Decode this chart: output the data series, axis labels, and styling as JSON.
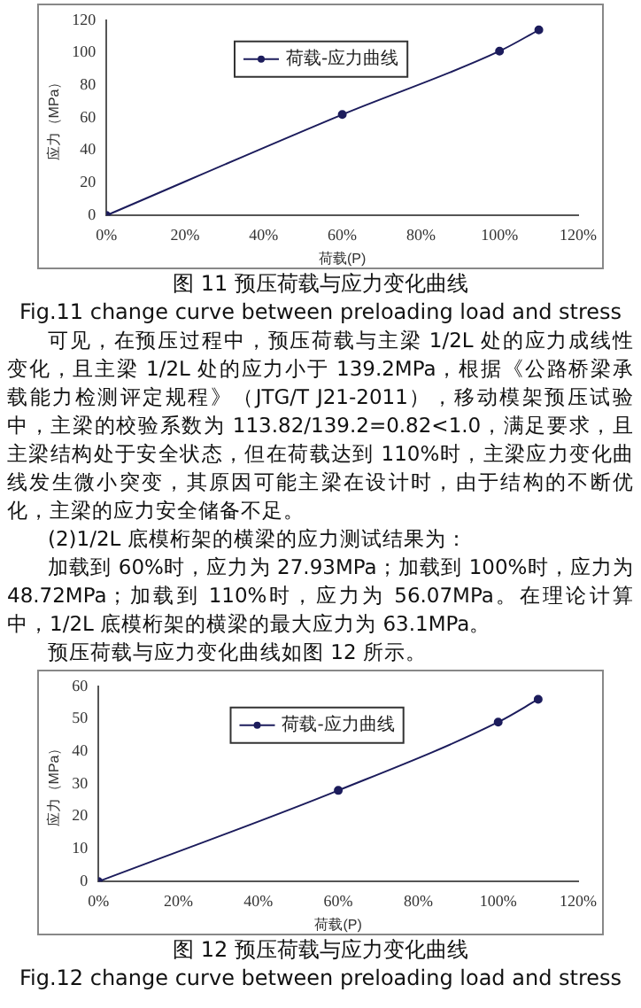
{
  "chart_data": [
    {
      "type": "line",
      "title": "图 11 预压荷载与应力变化曲线",
      "subtitle": "Fig.11    change curve between preloading load and stress",
      "xlabel": "荷载(P)",
      "ylabel": "应力（MPa）",
      "x": [
        0,
        60,
        100,
        110
      ],
      "series": [
        {
          "name": "荷载-应力曲线",
          "color": "#1c1c5c",
          "values": [
            0,
            62,
            101,
            114
          ]
        }
      ],
      "xlim": [
        0,
        120
      ],
      "xticks": [
        {
          "value": 0,
          "label": "0%"
        },
        {
          "value": 20,
          "label": "20%"
        },
        {
          "value": 40,
          "label": "40%"
        },
        {
          "value": 60,
          "label": "60%"
        },
        {
          "value": 80,
          "label": "80%"
        },
        {
          "value": 100,
          "label": "100%"
        },
        {
          "value": 120,
          "label": "120%"
        }
      ],
      "ylim": [
        0,
        120
      ],
      "yticks": [
        0,
        20,
        40,
        60,
        80,
        100,
        120
      ],
      "grid": false,
      "legend": "top",
      "marker": "circle",
      "line_style": "solid",
      "annotations": [
        "可见，在预压过程中，预压荷载与主梁 1/2L 处的应力成线性变化，且主梁 1/2L 处的应力小于 139.2MPa，根据《公路桥梁承载能力检测评定规程》（JTG/T J21-2011），移动模架预压试验中，主梁的校验系数为 113.82/139.2=0.82<1.0，满足要求，且主梁结构处于安全状态，但在荷载达到 110%时，主梁应力变化曲线发生微小突变，其原因可能主梁在设计时，由于结构的不断优化，主梁的应力安全储备不足。",
        "(2)1/2L 底模桁架的横梁的应力测试结果为：",
        "加载到 60%时，应力为 27.93MPa；加载到 100%时，应力为 48.72MPa；加载到 110%时，应力为 56.07MPa。在理论计算中，1/2L 底模桁架的横梁的最大应力为 63.1MPa。",
        "预压荷载与应力变化曲线如图 12 所示。"
      ]
    },
    {
      "type": "line",
      "title": "图 12 预压荷载与应力变化曲线",
      "subtitle": "Fig.12    change curve between preloading load and stress",
      "xlabel": "荷载(P)",
      "ylabel": "应力（MPa）",
      "x": [
        0,
        60,
        100,
        110
      ],
      "series": [
        {
          "name": "荷载-应力曲线",
          "color": "#1c1c5c",
          "values": [
            0,
            28,
            49,
            56
          ]
        }
      ],
      "xlim": [
        0,
        120
      ],
      "xticks": [
        {
          "value": 0,
          "label": "0%"
        },
        {
          "value": 20,
          "label": "20%"
        },
        {
          "value": 40,
          "label": "40%"
        },
        {
          "value": 60,
          "label": "60%"
        },
        {
          "value": 80,
          "label": "80%"
        },
        {
          "value": 100,
          "label": "100%"
        },
        {
          "value": 120,
          "label": "120%"
        }
      ],
      "ylim": [
        0,
        60
      ],
      "yticks": [
        0,
        10,
        20,
        30,
        40,
        50,
        60
      ],
      "grid": false,
      "legend": "top",
      "marker": "circle",
      "line_style": "solid"
    }
  ]
}
